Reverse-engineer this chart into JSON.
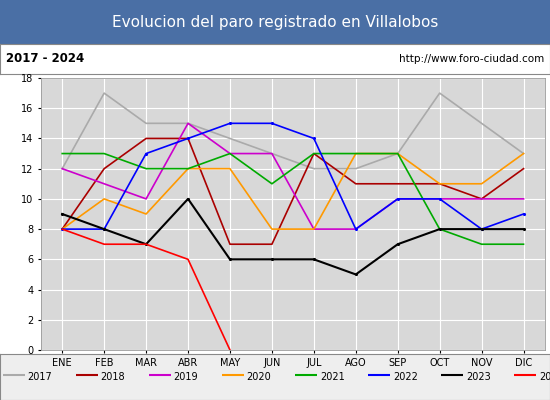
{
  "title": "Evolucion del paro registrado en Villalobos",
  "subtitle_left": "2017 - 2024",
  "subtitle_right": "http://www.foro-ciudad.com",
  "months": [
    "ENE",
    "FEB",
    "MAR",
    "ABR",
    "MAY",
    "JUN",
    "JUL",
    "AGO",
    "SEP",
    "OCT",
    "NOV",
    "DIC"
  ],
  "ylim": [
    0,
    18
  ],
  "yticks": [
    0,
    2,
    4,
    6,
    8,
    10,
    12,
    14,
    16,
    18
  ],
  "series": {
    "2017": {
      "color": "#aaaaaa",
      "ls": "-",
      "marker": null,
      "lw": 1.2,
      "data": [
        12,
        17,
        15,
        15,
        14,
        13,
        12,
        12,
        13,
        17,
        15,
        13
      ]
    },
    "2018": {
      "color": "#aa0000",
      "ls": "-",
      "marker": null,
      "lw": 1.2,
      "data": [
        8,
        12,
        14,
        14,
        7,
        7,
        13,
        11,
        11,
        11,
        10,
        12
      ]
    },
    "2019": {
      "color": "#cc00cc",
      "ls": "-",
      "marker": null,
      "lw": 1.2,
      "data": [
        12,
        11,
        10,
        15,
        13,
        13,
        8,
        8,
        10,
        10,
        10,
        10
      ]
    },
    "2020": {
      "color": "#ff9900",
      "ls": "-",
      "marker": null,
      "lw": 1.2,
      "data": [
        8,
        10,
        9,
        12,
        12,
        8,
        8,
        13,
        13,
        11,
        11,
        13
      ]
    },
    "2021": {
      "color": "#00aa00",
      "ls": "-",
      "marker": null,
      "lw": 1.2,
      "data": [
        13,
        13,
        12,
        12,
        13,
        11,
        13,
        13,
        13,
        8,
        7,
        7
      ]
    },
    "2022": {
      "color": "#0000ff",
      "ls": "-",
      "marker": ".",
      "lw": 1.2,
      "data": [
        8,
        8,
        13,
        14,
        15,
        15,
        14,
        8,
        10,
        10,
        8,
        9
      ]
    },
    "2023": {
      "color": "#000000",
      "ls": "-",
      "marker": ".",
      "lw": 1.5,
      "data": [
        9,
        8,
        7,
        10,
        6,
        6,
        6,
        5,
        7,
        8,
        8,
        8
      ]
    },
    "2024": {
      "color": "#ff0000",
      "ls": "-",
      "marker": null,
      "lw": 1.2,
      "data": [
        8,
        7,
        7,
        6,
        0,
        null,
        null,
        null,
        null,
        null,
        null,
        null
      ]
    }
  },
  "title_bg_color": "#4a6fa5",
  "title_text_color": "#ffffff",
  "subtitle_bg_color": "#ffffff",
  "plot_bg_color": "#d8d8d8",
  "grid_color": "#ffffff",
  "legend_bg_color": "#eeeeee"
}
